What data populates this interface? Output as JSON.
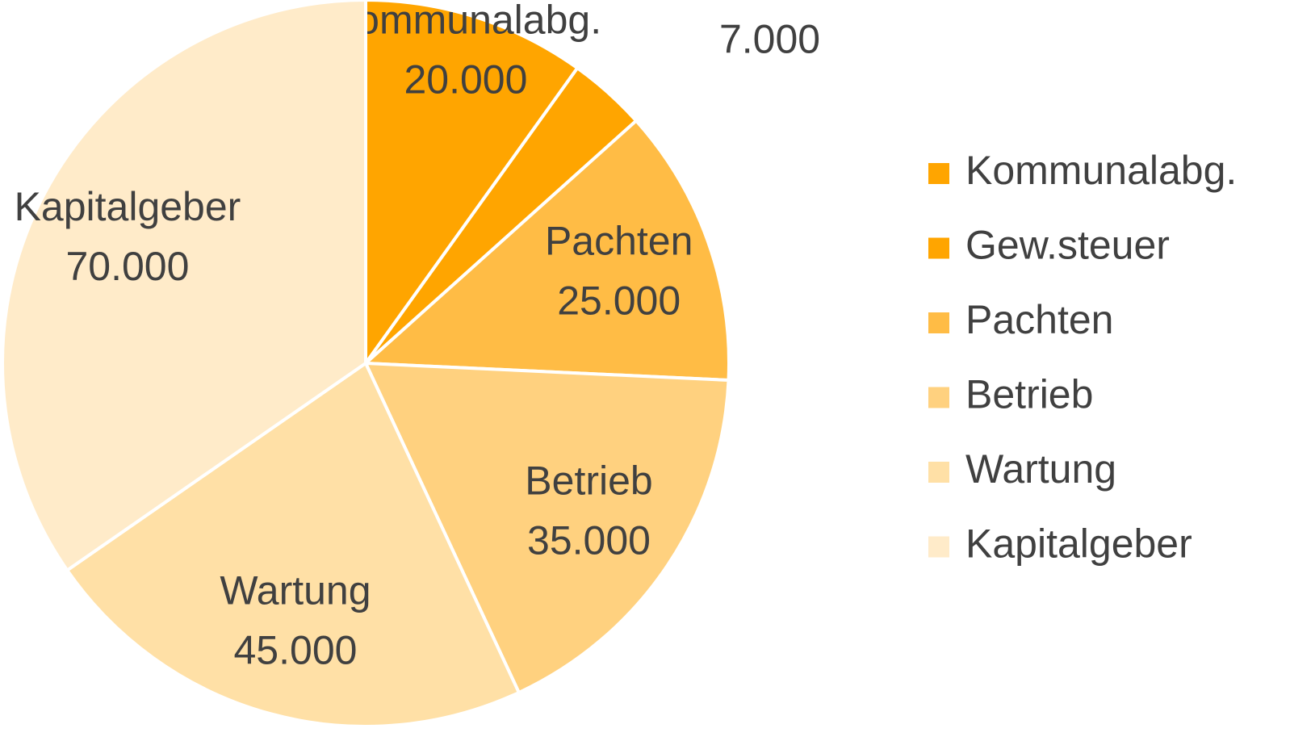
{
  "chart_data": {
    "type": "pie",
    "categories": [
      "Kommunalabg.",
      "Gew.steuer",
      "Pachten",
      "Betrieb",
      "Wartung",
      "Kapitalgeber"
    ],
    "values": [
      20000,
      7000,
      25000,
      35000,
      45000,
      70000
    ],
    "value_labels": [
      "20.000",
      "7.000",
      "25.000",
      "35.000",
      "45.000",
      "70.000"
    ],
    "colors": [
      "#FFA500",
      "#FFA500",
      "#FFBC45",
      "#FFD17F",
      "#FFE0A6",
      "#FFEBC9"
    ],
    "legend": "right"
  }
}
